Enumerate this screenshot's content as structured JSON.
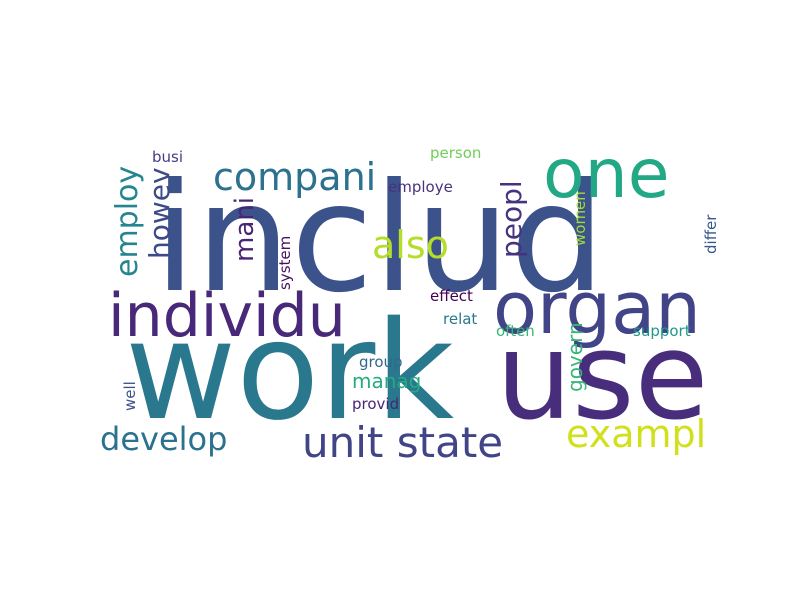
{
  "words": [
    {
      "text": "includ",
      "color": "#3b528b"
    },
    {
      "text": "work",
      "color": "#2a788e"
    },
    {
      "text": "use",
      "color": "#472d7b"
    },
    {
      "text": "one",
      "color": "#22a884"
    },
    {
      "text": "organ",
      "color": "#414487"
    },
    {
      "text": "individu",
      "color": "#482878"
    },
    {
      "text": "compani",
      "color": "#2c728e"
    },
    {
      "text": "also",
      "color": "#b5de2b"
    },
    {
      "text": "unit state",
      "color": "#414487"
    },
    {
      "text": "exampl",
      "color": "#d0e11c"
    },
    {
      "text": "develop",
      "color": "#2c728e"
    },
    {
      "text": "employ",
      "color": "#25858e"
    },
    {
      "text": "howev",
      "color": "#3e4989"
    },
    {
      "text": "mani",
      "color": "#482475"
    },
    {
      "text": "peopl",
      "color": "#46327e"
    },
    {
      "text": "govern",
      "color": "#35b779"
    },
    {
      "text": "manag",
      "color": "#25ab82"
    },
    {
      "text": "employe",
      "color": "#46327e"
    },
    {
      "text": "person",
      "color": "#6ece58"
    },
    {
      "text": "busi",
      "color": "#433e85"
    },
    {
      "text": "effect",
      "color": "#440154"
    },
    {
      "text": "relat",
      "color": "#2a788e"
    },
    {
      "text": "often",
      "color": "#35b779"
    },
    {
      "text": "support",
      "color": "#1f988b"
    },
    {
      "text": "group",
      "color": "#31688e"
    },
    {
      "text": "provid",
      "color": "#482475"
    },
    {
      "text": "well",
      "color": "#3b528b"
    },
    {
      "text": "system",
      "color": "#471063"
    },
    {
      "text": "women",
      "color": "#a2da37"
    },
    {
      "text": "differ",
      "color": "#38588c"
    }
  ]
}
